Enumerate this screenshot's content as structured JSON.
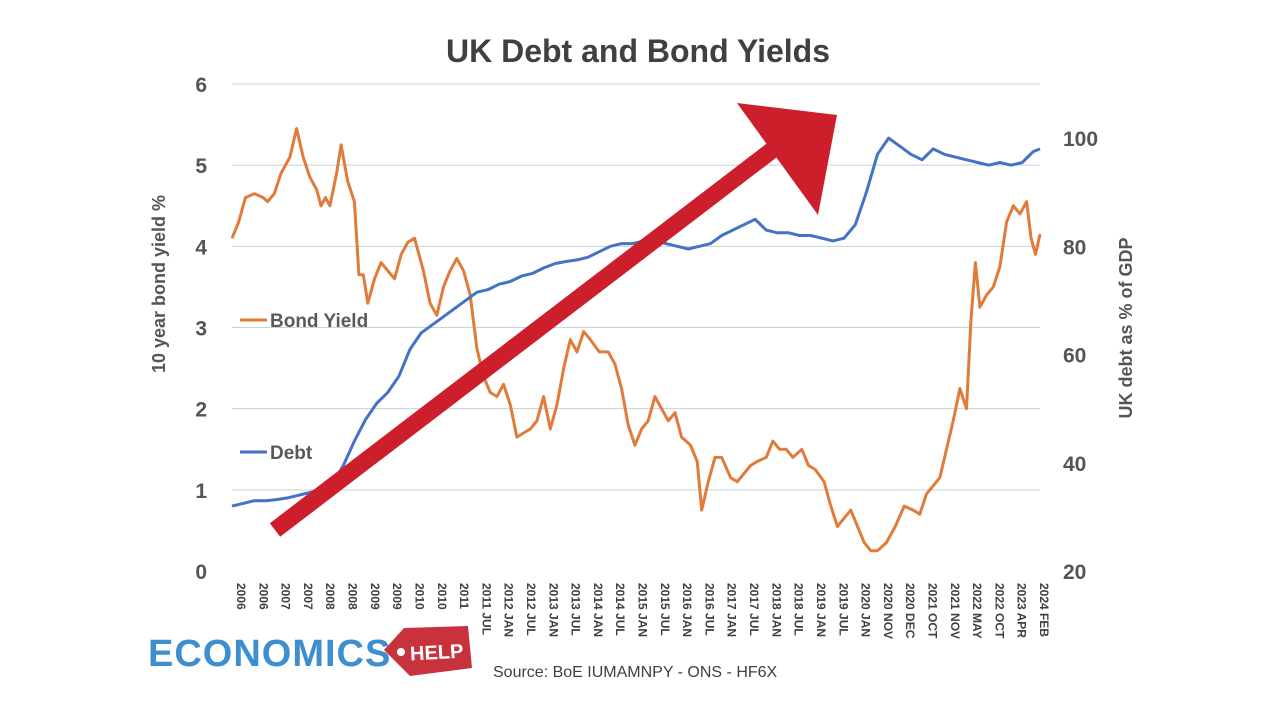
{
  "chart_data": {
    "type": "line",
    "title": "UK Debt and Bond Yields",
    "y_left": {
      "label": "10 year bond yield %",
      "range": [
        0,
        6
      ],
      "ticks": [
        0,
        1,
        2,
        3,
        4,
        5,
        6
      ]
    },
    "y_right": {
      "label": "UK debt as % of GDP",
      "range": [
        20,
        110
      ],
      "ticks": [
        20,
        40,
        60,
        80,
        100
      ]
    },
    "x_range": [
      2006.0,
      2024.15
    ],
    "x_tick_labels": [
      "2006",
      "2006",
      "2007",
      "2007",
      "2008",
      "2008",
      "2009",
      "2009",
      "2010",
      "2010",
      "2011",
      "2011 JUL",
      "2012 JAN",
      "2012 JUL",
      "2013 JAN",
      "2013 JUL",
      "2014 JAN",
      "2014 JUL",
      "2015 JAN",
      "2015 JUL",
      "2016 JAN",
      "2016 JUL",
      "2017 JAN",
      "2017 JUL",
      "2018 JAN",
      "2018 JUL",
      "2019 JAN",
      "2019 JUL",
      "2020 JAN",
      "2020 NOV",
      "2020 DEC",
      "2021 OCT",
      "2021 NOV",
      "2022 MAY",
      "2022 OCT",
      "2023 APR",
      "2024 FEB"
    ],
    "grid": "horizontal",
    "legend_placement": "inline-left",
    "series": [
      {
        "name": "Bond Yield",
        "axis": "left",
        "color": "#e07b39",
        "points": [
          [
            2006.0,
            4.1
          ],
          [
            2006.15,
            4.3
          ],
          [
            2006.3,
            4.6
          ],
          [
            2006.5,
            4.65
          ],
          [
            2006.7,
            4.6
          ],
          [
            2006.8,
            4.55
          ],
          [
            2006.95,
            4.65
          ],
          [
            2007.1,
            4.9
          ],
          [
            2007.3,
            5.1
          ],
          [
            2007.45,
            5.45
          ],
          [
            2007.6,
            5.1
          ],
          [
            2007.75,
            4.85
          ],
          [
            2007.9,
            4.7
          ],
          [
            2008.0,
            4.5
          ],
          [
            2008.1,
            4.6
          ],
          [
            2008.2,
            4.5
          ],
          [
            2008.35,
            4.9
          ],
          [
            2008.45,
            5.25
          ],
          [
            2008.6,
            4.8
          ],
          [
            2008.75,
            4.55
          ],
          [
            2008.85,
            3.65
          ],
          [
            2008.95,
            3.65
          ],
          [
            2009.05,
            3.3
          ],
          [
            2009.2,
            3.6
          ],
          [
            2009.35,
            3.8
          ],
          [
            2009.5,
            3.7
          ],
          [
            2009.65,
            3.6
          ],
          [
            2009.8,
            3.9
          ],
          [
            2009.95,
            4.05
          ],
          [
            2010.1,
            4.1
          ],
          [
            2010.3,
            3.7
          ],
          [
            2010.45,
            3.3
          ],
          [
            2010.6,
            3.15
          ],
          [
            2010.75,
            3.5
          ],
          [
            2010.9,
            3.7
          ],
          [
            2011.05,
            3.85
          ],
          [
            2011.2,
            3.7
          ],
          [
            2011.35,
            3.4
          ],
          [
            2011.5,
            2.75
          ],
          [
            2011.65,
            2.4
          ],
          [
            2011.8,
            2.2
          ],
          [
            2011.95,
            2.15
          ],
          [
            2012.1,
            2.3
          ],
          [
            2012.25,
            2.05
          ],
          [
            2012.4,
            1.65
          ],
          [
            2012.55,
            1.7
          ],
          [
            2012.7,
            1.75
          ],
          [
            2012.85,
            1.85
          ],
          [
            2013.0,
            2.15
          ],
          [
            2013.15,
            1.75
          ],
          [
            2013.3,
            2.05
          ],
          [
            2013.45,
            2.5
          ],
          [
            2013.6,
            2.85
          ],
          [
            2013.75,
            2.7
          ],
          [
            2013.9,
            2.95
          ],
          [
            2014.05,
            2.85
          ],
          [
            2014.25,
            2.7
          ],
          [
            2014.45,
            2.7
          ],
          [
            2014.6,
            2.55
          ],
          [
            2014.75,
            2.25
          ],
          [
            2014.9,
            1.8
          ],
          [
            2015.05,
            1.55
          ],
          [
            2015.2,
            1.75
          ],
          [
            2015.35,
            1.85
          ],
          [
            2015.5,
            2.15
          ],
          [
            2015.65,
            2.0
          ],
          [
            2015.8,
            1.85
          ],
          [
            2015.95,
            1.95
          ],
          [
            2016.1,
            1.65
          ],
          [
            2016.3,
            1.55
          ],
          [
            2016.45,
            1.35
          ],
          [
            2016.55,
            0.75
          ],
          [
            2016.7,
            1.1
          ],
          [
            2016.85,
            1.4
          ],
          [
            2017.0,
            1.4
          ],
          [
            2017.2,
            1.15
          ],
          [
            2017.35,
            1.1
          ],
          [
            2017.5,
            1.2
          ],
          [
            2017.65,
            1.3
          ],
          [
            2017.8,
            1.35
          ],
          [
            2018.0,
            1.4
          ],
          [
            2018.15,
            1.6
          ],
          [
            2018.3,
            1.5
          ],
          [
            2018.45,
            1.5
          ],
          [
            2018.6,
            1.4
          ],
          [
            2018.8,
            1.5
          ],
          [
            2018.95,
            1.3
          ],
          [
            2019.1,
            1.25
          ],
          [
            2019.3,
            1.1
          ],
          [
            2019.45,
            0.8
          ],
          [
            2019.6,
            0.55
          ],
          [
            2019.75,
            0.65
          ],
          [
            2019.9,
            0.75
          ],
          [
            2020.05,
            0.55
          ],
          [
            2020.2,
            0.35
          ],
          [
            2020.35,
            0.25
          ],
          [
            2020.5,
            0.25
          ],
          [
            2020.7,
            0.35
          ],
          [
            2020.9,
            0.55
          ],
          [
            2021.1,
            0.8
          ],
          [
            2021.3,
            0.75
          ],
          [
            2021.45,
            0.7
          ],
          [
            2021.6,
            0.95
          ],
          [
            2021.75,
            1.05
          ],
          [
            2021.9,
            1.15
          ],
          [
            2022.05,
            1.5
          ],
          [
            2022.2,
            1.85
          ],
          [
            2022.35,
            2.25
          ],
          [
            2022.5,
            2.0
          ],
          [
            2022.6,
            3.1
          ],
          [
            2022.7,
            3.8
          ],
          [
            2022.8,
            3.25
          ],
          [
            2022.95,
            3.4
          ],
          [
            2023.1,
            3.5
          ],
          [
            2023.25,
            3.75
          ],
          [
            2023.4,
            4.3
          ],
          [
            2023.55,
            4.5
          ],
          [
            2023.7,
            4.4
          ],
          [
            2023.85,
            4.55
          ],
          [
            2023.95,
            4.1
          ],
          [
            2024.05,
            3.9
          ],
          [
            2024.15,
            4.15
          ]
        ]
      },
      {
        "name": "Debt",
        "axis": "right",
        "color": "#4472c4",
        "points": [
          [
            2006.0,
            32
          ],
          [
            2006.25,
            32.5
          ],
          [
            2006.5,
            33
          ],
          [
            2006.75,
            33
          ],
          [
            2007.0,
            33.2
          ],
          [
            2007.25,
            33.5
          ],
          [
            2007.5,
            34
          ],
          [
            2007.75,
            34.5
          ],
          [
            2008.0,
            35
          ],
          [
            2008.25,
            36
          ],
          [
            2008.5,
            39.5
          ],
          [
            2008.75,
            44
          ],
          [
            2009.0,
            48
          ],
          [
            2009.25,
            51
          ],
          [
            2009.5,
            53
          ],
          [
            2009.75,
            56
          ],
          [
            2010.0,
            61
          ],
          [
            2010.25,
            64
          ],
          [
            2010.5,
            65.5
          ],
          [
            2010.75,
            67
          ],
          [
            2011.0,
            68.5
          ],
          [
            2011.25,
            70
          ],
          [
            2011.5,
            71.5
          ],
          [
            2011.75,
            72
          ],
          [
            2012.0,
            73
          ],
          [
            2012.25,
            73.5
          ],
          [
            2012.5,
            74.5
          ],
          [
            2012.75,
            75
          ],
          [
            2013.0,
            76
          ],
          [
            2013.25,
            76.8
          ],
          [
            2013.5,
            77.2
          ],
          [
            2013.75,
            77.5
          ],
          [
            2014.0,
            78
          ],
          [
            2014.25,
            79
          ],
          [
            2014.5,
            80
          ],
          [
            2014.75,
            80.5
          ],
          [
            2015.0,
            80.5
          ],
          [
            2015.25,
            81
          ],
          [
            2015.5,
            81
          ],
          [
            2015.75,
            80.5
          ],
          [
            2016.0,
            80
          ],
          [
            2016.25,
            79.5
          ],
          [
            2016.5,
            80
          ],
          [
            2016.75,
            80.5
          ],
          [
            2017.0,
            82
          ],
          [
            2017.25,
            83
          ],
          [
            2017.5,
            84
          ],
          [
            2017.75,
            85
          ],
          [
            2018.0,
            83
          ],
          [
            2018.25,
            82.5
          ],
          [
            2018.5,
            82.5
          ],
          [
            2018.75,
            82
          ],
          [
            2019.0,
            82
          ],
          [
            2019.25,
            81.5
          ],
          [
            2019.5,
            81
          ],
          [
            2019.75,
            81.5
          ],
          [
            2020.0,
            84
          ],
          [
            2020.25,
            90
          ],
          [
            2020.5,
            97
          ],
          [
            2020.75,
            100
          ],
          [
            2021.0,
            98.5
          ],
          [
            2021.25,
            97
          ],
          [
            2021.5,
            96
          ],
          [
            2021.75,
            98
          ],
          [
            2022.0,
            97
          ],
          [
            2022.25,
            96.5
          ],
          [
            2022.5,
            96
          ],
          [
            2022.75,
            95.5
          ],
          [
            2023.0,
            95
          ],
          [
            2023.25,
            95.5
          ],
          [
            2023.5,
            95
          ],
          [
            2023.75,
            95.5
          ],
          [
            2024.0,
            97.5
          ],
          [
            2024.15,
            98
          ]
        ]
      }
    ],
    "annotation": {
      "type": "trend-arrow",
      "color": "#cc1f2b"
    }
  },
  "source": "Source: BoE IUMAMNPY - ONS - HF6X",
  "logo": {
    "main": "ECONOMICS",
    "tag": "HELP"
  }
}
